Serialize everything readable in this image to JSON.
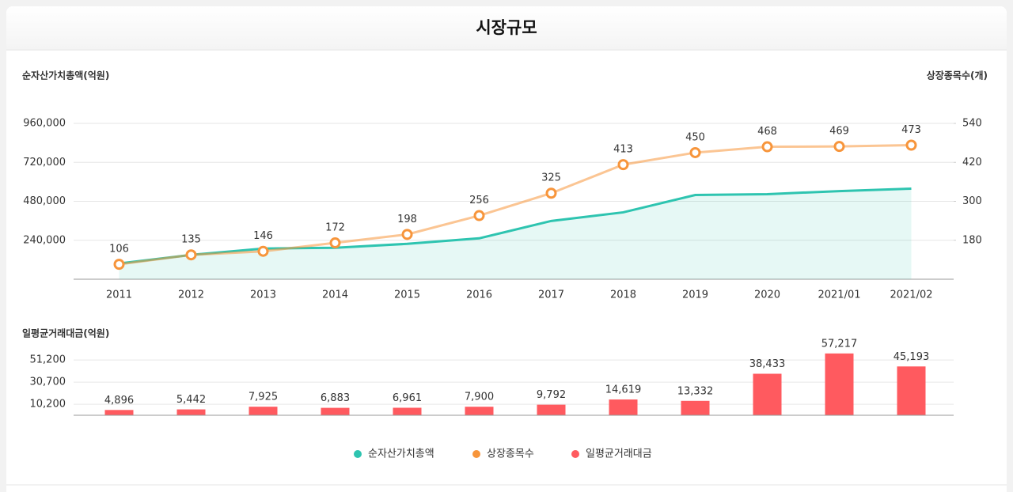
{
  "header": {
    "title": "시장규모"
  },
  "chart_data": [
    {
      "type": "line",
      "ylabel": "순자산가치총액(억원)",
      "y2label": "상장종목수(개)",
      "categories": [
        "2011",
        "2012",
        "2013",
        "2014",
        "2015",
        "2016",
        "2017",
        "2018",
        "2019",
        "2020",
        "2021/01",
        "2021/02"
      ],
      "series": [
        {
          "name": "순자산가치총액",
          "color": "#2ec4b0",
          "style": "area",
          "axis": "y",
          "values": [
            97000,
            150000,
            189000,
            194000,
            218000,
            252000,
            359000,
            412000,
            519000,
            524000,
            543000,
            558000
          ]
        },
        {
          "name": "상장종목수",
          "color": "#f7953b",
          "style": "marker-line",
          "axis": "y2",
          "values": [
            106,
            135,
            146,
            172,
            198,
            256,
            325,
            413,
            450,
            468,
            469,
            473
          ]
        }
      ],
      "ylim": [
        0,
        960000
      ],
      "yticks": [
        {
          "value": 240000,
          "label": "240,000"
        },
        {
          "value": 480000,
          "label": "480,000"
        },
        {
          "value": 720000,
          "label": "720,000"
        },
        {
          "value": 960000,
          "label": "960,000"
        }
      ],
      "y2lim": [
        60,
        540
      ],
      "y2ticks": [
        180,
        300,
        420,
        540
      ],
      "grid": true
    },
    {
      "type": "bar",
      "ylabel": "일평균거래대금(억원)",
      "series": [
        {
          "name": "일평균거래대금",
          "color": "#ff5a5f",
          "values": [
            4896,
            5442,
            7925,
            6883,
            6961,
            7900,
            9792,
            14619,
            13332,
            38433,
            57217,
            45193
          ],
          "value_labels": [
            "4,896",
            "5,442",
            "7,925",
            "6,883",
            "6,961",
            "7,900",
            "9,792",
            "14,619",
            "13,332",
            "38,433",
            "57,217",
            "45,193"
          ]
        }
      ],
      "ylim": [
        0,
        61500
      ],
      "yticks": [
        {
          "value": 10200,
          "label": "10,200"
        },
        {
          "value": 30700,
          "label": "30,700"
        },
        {
          "value": 51200,
          "label": "51,200"
        }
      ],
      "grid": true,
      "legend": "bottom"
    }
  ]
}
